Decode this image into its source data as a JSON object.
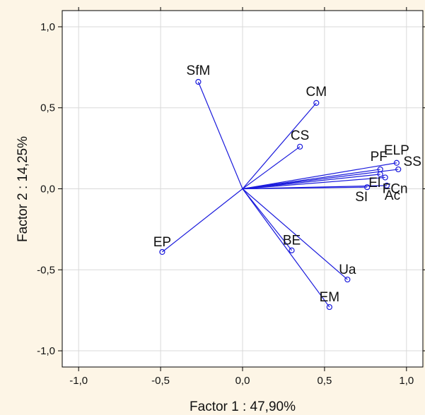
{
  "chart_data": {
    "type": "scatter",
    "title": "",
    "xlabel": "Factor 1 : 47,90%",
    "ylabel": "Factor 2 : 14,25%",
    "xlim": [
      -1.1,
      1.1
    ],
    "ylim": [
      -1.1,
      1.1
    ],
    "x_ticks": [
      "-1,0",
      "-0,5",
      "0,0",
      "0,5",
      "1,0"
    ],
    "y_ticks": [
      "1,0",
      "0,5",
      "0,0",
      "-0,5",
      "-1,0"
    ],
    "grid": true,
    "colors": {
      "vector": "#1a1adc",
      "grid": "#d9d9d9",
      "background": "#fdf5e6",
      "plot": "#ffffff"
    },
    "points": [
      {
        "name": "SfM",
        "x": -0.27,
        "y": 0.66
      },
      {
        "name": "CM",
        "x": 0.45,
        "y": 0.53
      },
      {
        "name": "CS",
        "x": 0.35,
        "y": 0.26
      },
      {
        "name": "ELP",
        "x": 0.94,
        "y": 0.16
      },
      {
        "name": "SS",
        "x": 0.95,
        "y": 0.12
      },
      {
        "name": "PF",
        "x": 0.84,
        "y": 0.12
      },
      {
        "name": "El",
        "x": 0.84,
        "y": 0.09
      },
      {
        "name": "FCn",
        "x": 0.87,
        "y": 0.07
      },
      {
        "name": "SI",
        "x": 0.76,
        "y": 0.01
      },
      {
        "name": "Ac",
        "x": 0.88,
        "y": 0.02
      },
      {
        "name": "EP",
        "x": -0.49,
        "y": -0.39
      },
      {
        "name": "BE",
        "x": 0.3,
        "y": -0.38
      },
      {
        "name": "Ua",
        "x": 0.64,
        "y": -0.56
      },
      {
        "name": "EM",
        "x": 0.53,
        "y": -0.73
      }
    ]
  }
}
